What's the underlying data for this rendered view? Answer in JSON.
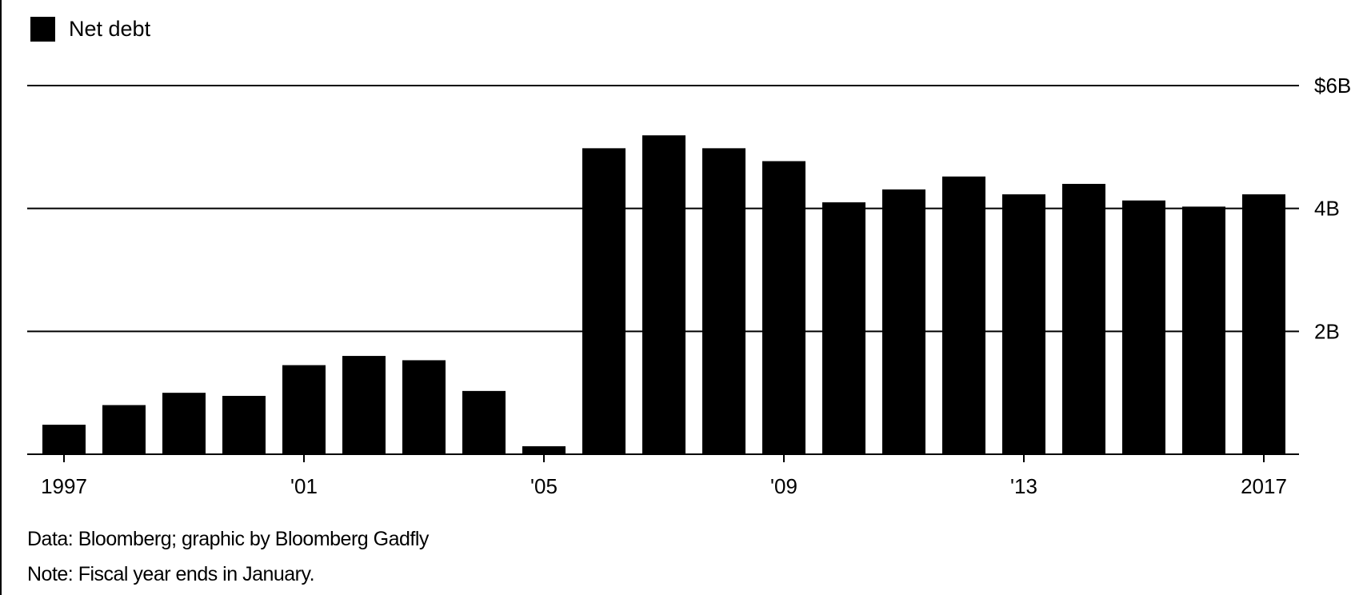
{
  "legend": {
    "label": "Net debt",
    "color": "#000000"
  },
  "footer": {
    "source": "Data: Bloomberg; graphic by Bloomberg Gadfly",
    "note": "Note: Fiscal year ends in January."
  },
  "chart_data": {
    "type": "bar",
    "categories": [
      "1997",
      "1998",
      "1999",
      "2000",
      "2001",
      "2002",
      "2003",
      "2004",
      "2005",
      "2006",
      "2007",
      "2008",
      "2009",
      "2010",
      "2011",
      "2012",
      "2013",
      "2014",
      "2015",
      "2016",
      "2017"
    ],
    "series": [
      {
        "name": "Net debt",
        "color": "#000000",
        "values": [
          0.48,
          0.8,
          1.0,
          0.95,
          1.45,
          1.6,
          1.53,
          1.03,
          0.13,
          4.98,
          5.19,
          4.98,
          4.77,
          4.1,
          4.31,
          4.52,
          4.23,
          4.4,
          4.13,
          4.03,
          4.23
        ]
      }
    ],
    "ylim": [
      0,
      6
    ],
    "yticks": [
      {
        "value": 2,
        "label": "2B"
      },
      {
        "value": 4,
        "label": "4B"
      },
      {
        "value": 6,
        "label": "$6B"
      }
    ],
    "xticks": [
      {
        "category": "1997",
        "label": "1997"
      },
      {
        "category": "2001",
        "label": "'01"
      },
      {
        "category": "2005",
        "label": "'05"
      },
      {
        "category": "2009",
        "label": "'09"
      },
      {
        "category": "2013",
        "label": "'13"
      },
      {
        "category": "2017",
        "label": "2017"
      }
    ],
    "grid": true,
    "legend_position": "top-left",
    "title": "",
    "xlabel": "",
    "ylabel": ""
  }
}
